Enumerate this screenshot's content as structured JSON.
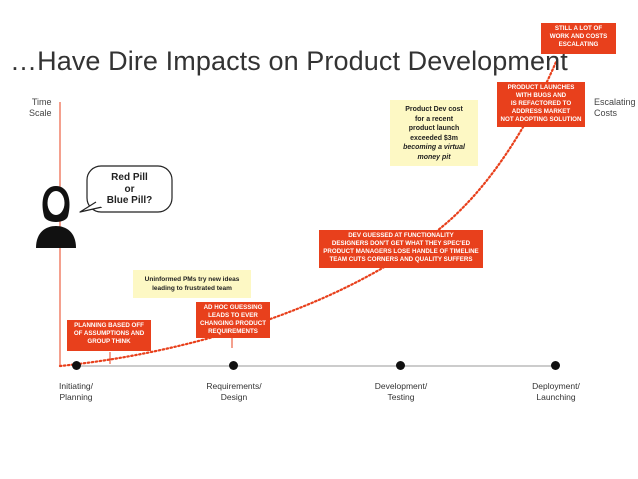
{
  "title": "…Have Dire Impacts on Product Development",
  "axes": {
    "y_label_left": [
      "Time",
      "Scale"
    ],
    "y_label_right": [
      "Escalating",
      "Costs"
    ]
  },
  "speech_bubble": [
    "Red Pill",
    "or",
    "Blue Pill?"
  ],
  "stages": [
    [
      "Initiating/",
      "Planning"
    ],
    [
      "Requirements/",
      "Design"
    ],
    [
      "Development/",
      "Testing"
    ],
    [
      "Deployment/",
      "Launching"
    ]
  ],
  "callouts": {
    "planning": [
      "PLANNING BASED OFF",
      "OF ASSUMPTIONS AND",
      "GROUP THINK"
    ],
    "uninformed": [
      "Uninformed PMs try new ideas",
      "leading to frustrated team"
    ],
    "adhoc": [
      "AD HOC GUESSING",
      "LEADS TO EVER",
      "CHANGING PRODUCT",
      "REQUIREMENTS"
    ],
    "dev_guessed": [
      "DEV GUESSED AT FUNCTIONALITY",
      "DESIGNERS DON'T GET WHAT THEY SPEC'ED",
      "PRODUCT MANAGERS LOSE HANDLE OF TIMELINE",
      "TEAM CUTS CORNERS AND QUALITY SUFFERS"
    ],
    "cost_note": [
      "Product Dev cost",
      "for a recent",
      "product launch",
      "exceeded $3m"
    ],
    "cost_note_italic": [
      "becoming a virtual",
      "money pit"
    ],
    "launches": [
      "PRODUCT LAUNCHES",
      "WITH BUGS AND",
      "IS REFACTORED TO",
      "ADDRESS MARKET",
      "NOT ADOPTING SOLUTION"
    ],
    "still_lot": [
      "STILL A LOT OF",
      "WORK AND COSTS",
      "ESCALATING"
    ]
  },
  "colors": {
    "curve": "#e8401c",
    "axis": "#e8401c",
    "callout_red": "#e8401c",
    "callout_yellow": "#fdf8c4",
    "timeline": "#888888"
  }
}
